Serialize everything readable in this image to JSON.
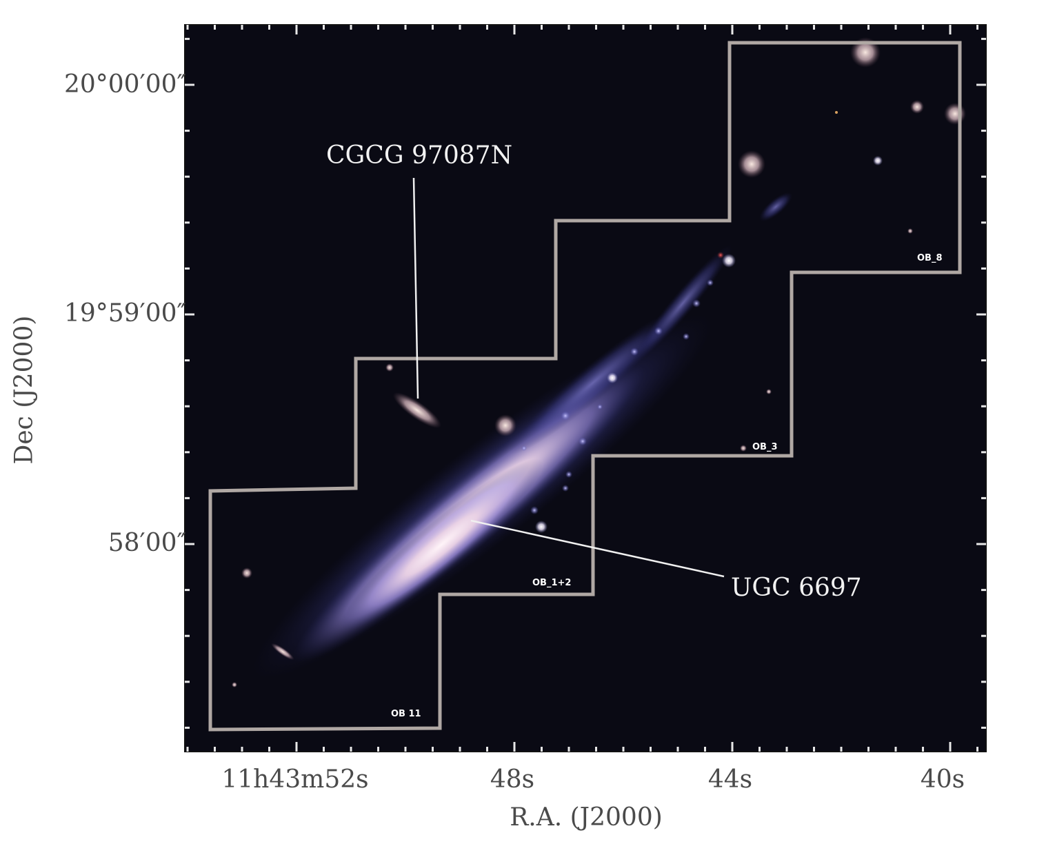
{
  "figure": {
    "y_ticks": [
      "20°00′00″",
      "19°59′00″",
      "58′00″"
    ],
    "x_ticks": [
      "11h43m52s",
      "48s",
      "44s",
      "40s"
    ],
    "x_axis_title": "R.A. (J2000)",
    "y_axis_title": "Dec (J2000)",
    "annotations": [
      "CGCG 97087N",
      "UGC 6697"
    ],
    "field_labels": [
      "OB_8",
      "OB_3",
      "OB_1+2",
      "OB 11"
    ]
  },
  "colors": {
    "background": "#0a0a14",
    "footprint_outline": "#b0a8a4",
    "galaxy_core": "#f3e6ee",
    "galaxy_halo": "#7a7ad8"
  }
}
